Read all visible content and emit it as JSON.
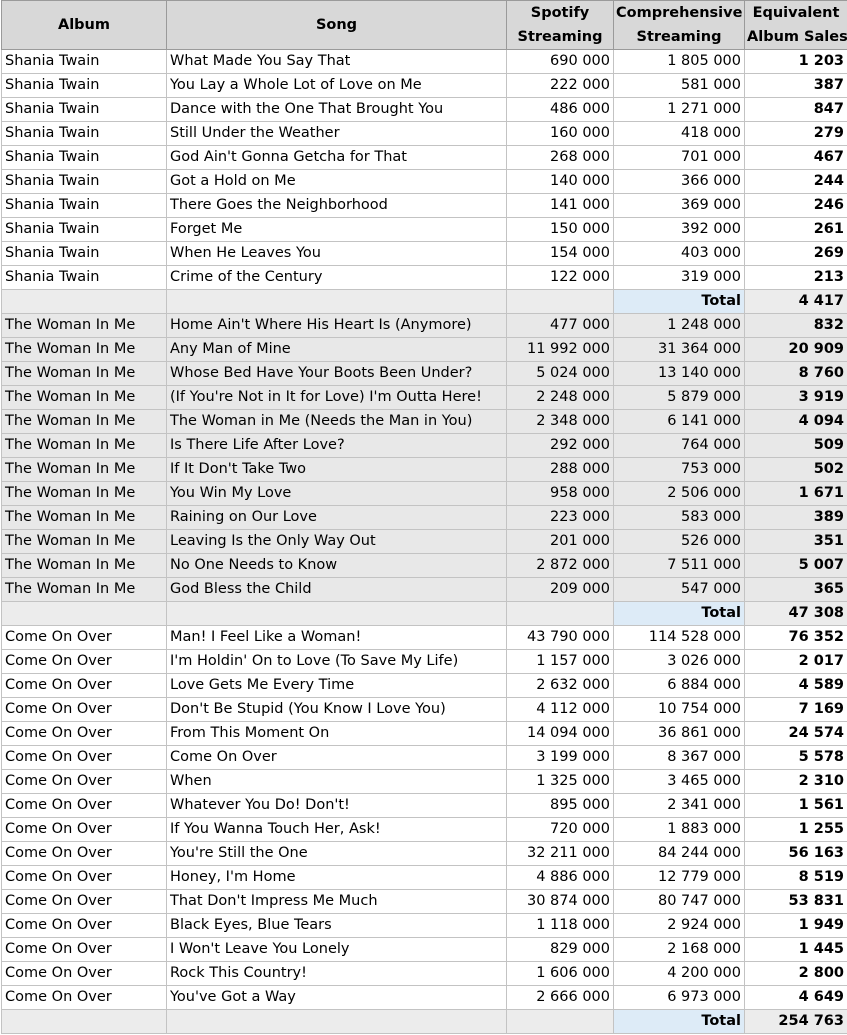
{
  "headers": {
    "album": "Album",
    "song": "Song",
    "spotify_line1": "Spotify",
    "spotify_line2": "Streaming",
    "comp_line1": "Comprehensive",
    "comp_line2": "Streaming",
    "eas_line1": "Equivalent",
    "eas_line2": "Album Sales"
  },
  "sections": [
    {
      "shaded": false,
      "total_label": "Total",
      "total_value": "4 417",
      "rows": [
        {
          "album": "Shania Twain",
          "song": "What Made You Say That",
          "spotify": "690 000",
          "comp": "1 805 000",
          "eas": "1 203"
        },
        {
          "album": "Shania Twain",
          "song": "You Lay a Whole Lot of Love on Me",
          "spotify": "222 000",
          "comp": "581 000",
          "eas": "387"
        },
        {
          "album": "Shania Twain",
          "song": "Dance with the One That Brought You",
          "spotify": "486 000",
          "comp": "1 271 000",
          "eas": "847"
        },
        {
          "album": "Shania Twain",
          "song": "Still Under the Weather",
          "spotify": "160 000",
          "comp": "418 000",
          "eas": "279"
        },
        {
          "album": "Shania Twain",
          "song": "God Ain't Gonna Getcha for That",
          "spotify": "268 000",
          "comp": "701 000",
          "eas": "467"
        },
        {
          "album": "Shania Twain",
          "song": "Got a Hold on Me",
          "spotify": "140 000",
          "comp": "366 000",
          "eas": "244"
        },
        {
          "album": "Shania Twain",
          "song": "There Goes the Neighborhood",
          "spotify": "141 000",
          "comp": "369 000",
          "eas": "246"
        },
        {
          "album": "Shania Twain",
          "song": "Forget Me",
          "spotify": "150 000",
          "comp": "392 000",
          "eas": "261"
        },
        {
          "album": "Shania Twain",
          "song": "When He Leaves You",
          "spotify": "154 000",
          "comp": "403 000",
          "eas": "269"
        },
        {
          "album": "Shania Twain",
          "song": "Crime of the Century",
          "spotify": "122 000",
          "comp": "319 000",
          "eas": "213"
        }
      ]
    },
    {
      "shaded": true,
      "total_label": "Total",
      "total_value": "47 308",
      "rows": [
        {
          "album": "The Woman In Me",
          "song": "Home Ain't Where His Heart Is (Anymore)",
          "spotify": "477 000",
          "comp": "1 248 000",
          "eas": "832"
        },
        {
          "album": "The Woman In Me",
          "song": "Any Man of Mine",
          "spotify": "11 992 000",
          "comp": "31 364 000",
          "eas": "20 909"
        },
        {
          "album": "The Woman In Me",
          "song": "Whose Bed Have Your Boots Been Under?",
          "spotify": "5 024 000",
          "comp": "13 140 000",
          "eas": "8 760"
        },
        {
          "album": "The Woman In Me",
          "song": "(If You're Not in It for Love) I'm Outta Here!",
          "spotify": "2 248 000",
          "comp": "5 879 000",
          "eas": "3 919"
        },
        {
          "album": "The Woman In Me",
          "song": "The Woman in Me (Needs the Man in You)",
          "spotify": "2 348 000",
          "comp": "6 141 000",
          "eas": "4 094"
        },
        {
          "album": "The Woman In Me",
          "song": "Is There Life After Love?",
          "spotify": "292 000",
          "comp": "764 000",
          "eas": "509"
        },
        {
          "album": "The Woman In Me",
          "song": "If It Don't Take Two",
          "spotify": "288 000",
          "comp": "753 000",
          "eas": "502"
        },
        {
          "album": "The Woman In Me",
          "song": "You Win My Love",
          "spotify": "958 000",
          "comp": "2 506 000",
          "eas": "1 671"
        },
        {
          "album": "The Woman In Me",
          "song": "Raining on Our Love",
          "spotify": "223 000",
          "comp": "583 000",
          "eas": "389"
        },
        {
          "album": "The Woman In Me",
          "song": "Leaving Is the Only Way Out",
          "spotify": "201 000",
          "comp": "526 000",
          "eas": "351"
        },
        {
          "album": "The Woman In Me",
          "song": "No One Needs to Know",
          "spotify": "2 872 000",
          "comp": "7 511 000",
          "eas": "5 007"
        },
        {
          "album": "The Woman In Me",
          "song": "God Bless the Child",
          "spotify": "209 000",
          "comp": "547 000",
          "eas": "365"
        }
      ]
    },
    {
      "shaded": false,
      "total_label": "Total",
      "total_value": "254 763",
      "rows": [
        {
          "album": "Come On Over",
          "song": "Man! I Feel Like a Woman!",
          "spotify": "43 790 000",
          "comp": "114 528 000",
          "eas": "76 352"
        },
        {
          "album": "Come On Over",
          "song": "I'm Holdin' On to Love (To Save My Life)",
          "spotify": "1 157 000",
          "comp": "3 026 000",
          "eas": "2 017"
        },
        {
          "album": "Come On Over",
          "song": "Love Gets Me Every Time",
          "spotify": "2 632 000",
          "comp": "6 884 000",
          "eas": "4 589"
        },
        {
          "album": "Come On Over",
          "song": "Don't Be Stupid (You Know I Love You)",
          "spotify": "4 112 000",
          "comp": "10 754 000",
          "eas": "7 169"
        },
        {
          "album": "Come On Over",
          "song": "From This Moment On",
          "spotify": "14 094 000",
          "comp": "36 861 000",
          "eas": "24 574"
        },
        {
          "album": "Come On Over",
          "song": "Come On Over",
          "spotify": "3 199 000",
          "comp": "8 367 000",
          "eas": "5 578"
        },
        {
          "album": "Come On Over",
          "song": "When",
          "spotify": "1 325 000",
          "comp": "3 465 000",
          "eas": "2 310"
        },
        {
          "album": "Come On Over",
          "song": "Whatever You Do! Don't!",
          "spotify": "895 000",
          "comp": "2 341 000",
          "eas": "1 561"
        },
        {
          "album": "Come On Over",
          "song": "If You Wanna Touch Her, Ask!",
          "spotify": "720 000",
          "comp": "1 883 000",
          "eas": "1 255"
        },
        {
          "album": "Come On Over",
          "song": "You're Still the One",
          "spotify": "32 211 000",
          "comp": "84 244 000",
          "eas": "56 163"
        },
        {
          "album": "Come On Over",
          "song": "Honey, I'm Home",
          "spotify": "4 886 000",
          "comp": "12 779 000",
          "eas": "8 519"
        },
        {
          "album": "Come On Over",
          "song": "That Don't Impress Me Much",
          "spotify": "30 874 000",
          "comp": "80 747 000",
          "eas": "53 831"
        },
        {
          "album": "Come On Over",
          "song": "Black Eyes, Blue Tears",
          "spotify": "1 118 000",
          "comp": "2 924 000",
          "eas": "1 949"
        },
        {
          "album": "Come On Over",
          "song": "I Won't Leave You Lonely",
          "spotify": "829 000",
          "comp": "2 168 000",
          "eas": "1 445"
        },
        {
          "album": "Come On Over",
          "song": "Rock This Country!",
          "spotify": "1 606 000",
          "comp": "4 200 000",
          "eas": "2 800"
        },
        {
          "album": "Come On Over",
          "song": "You've Got a Way",
          "spotify": "2 666 000",
          "comp": "6 973 000",
          "eas": "4 649"
        }
      ]
    }
  ]
}
